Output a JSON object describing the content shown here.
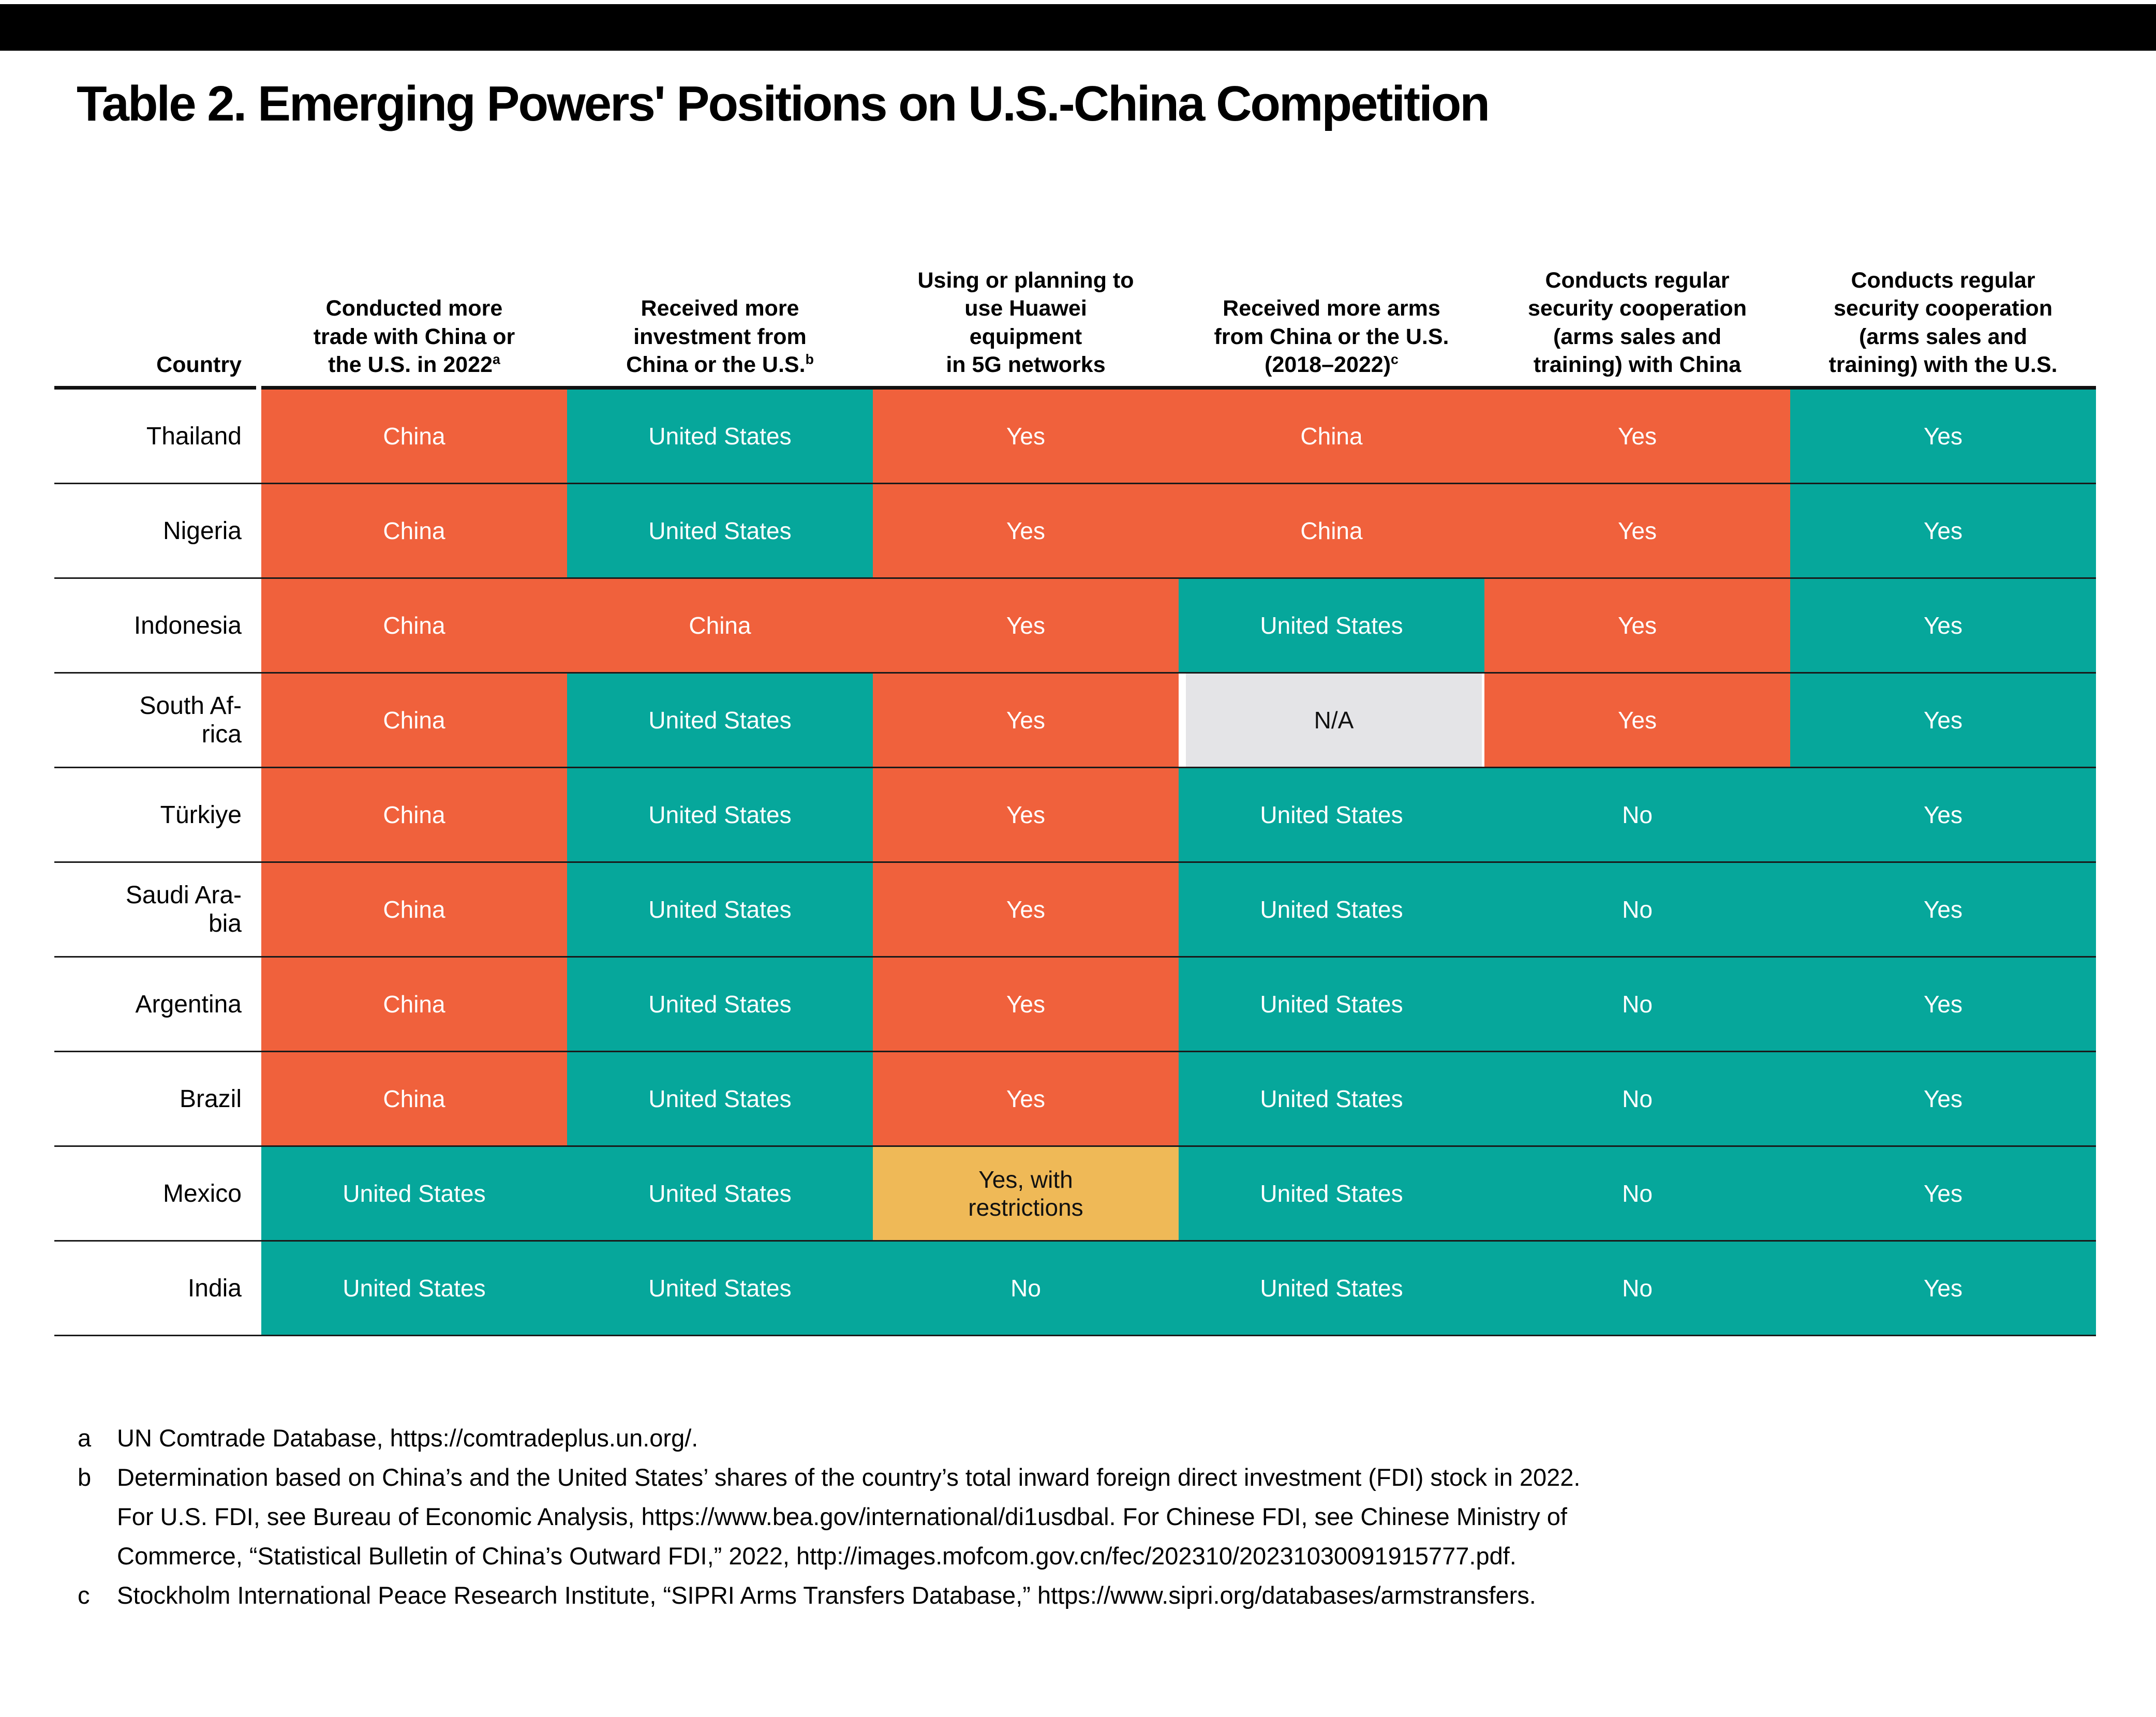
{
  "page": {
    "title": "Table 2. Emerging Powers' Positions on U.S.-China Competition"
  },
  "colors": {
    "top_bar": "#000000",
    "orange": "#F0613C",
    "teal": "#06A79B",
    "yellow": "#EFB957",
    "gray": "#E4E4E7",
    "line": "#1A1A1A"
  },
  "table": {
    "country_header": "Country",
    "columns": [
      {
        "label": "Conducted more\ntrade with China or\nthe U.S. in 2022",
        "sup": "a"
      },
      {
        "label": "Received more\ninvestment from\nChina or the U.S.",
        "sup": "b"
      },
      {
        "label": "Using or planning to\nuse Huawei\nequipment\nin 5G networks",
        "sup": ""
      },
      {
        "label": "Received more arms\nfrom China or the U.S.\n(2018–2022)",
        "sup": "c"
      },
      {
        "label": "Conducts regular\nsecurity cooperation\n(arms sales and\ntraining) with China",
        "sup": ""
      },
      {
        "label": "Conducts regular\nsecurity cooperation\n(arms sales and\ntraining) with the U.S.",
        "sup": ""
      }
    ],
    "rows": [
      {
        "country": "Thailand",
        "cells": [
          {
            "text": "China",
            "color": "orange"
          },
          {
            "text": "United States",
            "color": "teal"
          },
          {
            "text": "Yes",
            "color": "orange"
          },
          {
            "text": "China",
            "color": "orange"
          },
          {
            "text": "Yes",
            "color": "orange"
          },
          {
            "text": "Yes",
            "color": "teal"
          }
        ]
      },
      {
        "country": "Nigeria",
        "cells": [
          {
            "text": "China",
            "color": "orange"
          },
          {
            "text": "United States",
            "color": "teal"
          },
          {
            "text": "Yes",
            "color": "orange"
          },
          {
            "text": "China",
            "color": "orange"
          },
          {
            "text": "Yes",
            "color": "orange"
          },
          {
            "text": "Yes",
            "color": "teal"
          }
        ]
      },
      {
        "country": "Indonesia",
        "cells": [
          {
            "text": "China",
            "color": "orange"
          },
          {
            "text": "China",
            "color": "orange"
          },
          {
            "text": "Yes",
            "color": "orange"
          },
          {
            "text": "United States",
            "color": "teal"
          },
          {
            "text": "Yes",
            "color": "orange"
          },
          {
            "text": "Yes",
            "color": "teal"
          }
        ]
      },
      {
        "country": "South Af-\nrica",
        "cells": [
          {
            "text": "China",
            "color": "orange"
          },
          {
            "text": "United States",
            "color": "teal"
          },
          {
            "text": "Yes",
            "color": "orange"
          },
          {
            "text": "N/A",
            "color": "gray"
          },
          {
            "text": "Yes",
            "color": "orange"
          },
          {
            "text": "Yes",
            "color": "teal"
          }
        ]
      },
      {
        "country": "Türkiye",
        "cells": [
          {
            "text": "China",
            "color": "orange"
          },
          {
            "text": "United States",
            "color": "teal"
          },
          {
            "text": "Yes",
            "color": "orange"
          },
          {
            "text": "United States",
            "color": "teal"
          },
          {
            "text": "No",
            "color": "teal"
          },
          {
            "text": "Yes",
            "color": "teal"
          }
        ]
      },
      {
        "country": "Saudi Ara-\nbia",
        "cells": [
          {
            "text": "China",
            "color": "orange"
          },
          {
            "text": "United States",
            "color": "teal"
          },
          {
            "text": "Yes",
            "color": "orange"
          },
          {
            "text": "United States",
            "color": "teal"
          },
          {
            "text": "No",
            "color": "teal"
          },
          {
            "text": "Yes",
            "color": "teal"
          }
        ]
      },
      {
        "country": "Argentina",
        "cells": [
          {
            "text": "China",
            "color": "orange"
          },
          {
            "text": "United States",
            "color": "teal"
          },
          {
            "text": "Yes",
            "color": "orange"
          },
          {
            "text": "United States",
            "color": "teal"
          },
          {
            "text": "No",
            "color": "teal"
          },
          {
            "text": "Yes",
            "color": "teal"
          }
        ]
      },
      {
        "country": "Brazil",
        "cells": [
          {
            "text": "China",
            "color": "orange"
          },
          {
            "text": "United States",
            "color": "teal"
          },
          {
            "text": "Yes",
            "color": "orange"
          },
          {
            "text": "United States",
            "color": "teal"
          },
          {
            "text": "No",
            "color": "teal"
          },
          {
            "text": "Yes",
            "color": "teal"
          }
        ]
      },
      {
        "country": "Mexico",
        "cells": [
          {
            "text": "United States",
            "color": "teal"
          },
          {
            "text": "United States",
            "color": "teal"
          },
          {
            "text": "Yes, with\nrestrictions",
            "color": "yellow"
          },
          {
            "text": "United States",
            "color": "teal"
          },
          {
            "text": "No",
            "color": "teal"
          },
          {
            "text": "Yes",
            "color": "teal"
          }
        ]
      },
      {
        "country": "India",
        "cells": [
          {
            "text": "United States",
            "color": "teal"
          },
          {
            "text": "United States",
            "color": "teal"
          },
          {
            "text": "No",
            "color": "teal"
          },
          {
            "text": "United States",
            "color": "teal"
          },
          {
            "text": "No",
            "color": "teal"
          },
          {
            "text": "Yes",
            "color": "teal"
          }
        ]
      }
    ]
  },
  "footnotes": [
    {
      "marker": "a",
      "text": "UN Comtrade Database, https://comtradeplus.un.org/."
    },
    {
      "marker": "b",
      "text": "Determination based on China’s and the United States’ shares of the country’s total inward foreign direct investment (FDI) stock in 2022.\nFor U.S. FDI, see Bureau of Economic Analysis, https://www.bea.gov/international/di1usdbal. For Chinese FDI, see Chinese Ministry of\nCommerce, “Statistical Bulletin of China’s Outward FDI,” 2022, http://images.mofcom.gov.cn/fec/202310/20231030091915777.pdf."
    },
    {
      "marker": "c",
      "text": "Stockholm International Peace Research Institute, “SIPRI Arms Transfers Database,” https://www.sipri.org/databases/armstransfers."
    }
  ]
}
